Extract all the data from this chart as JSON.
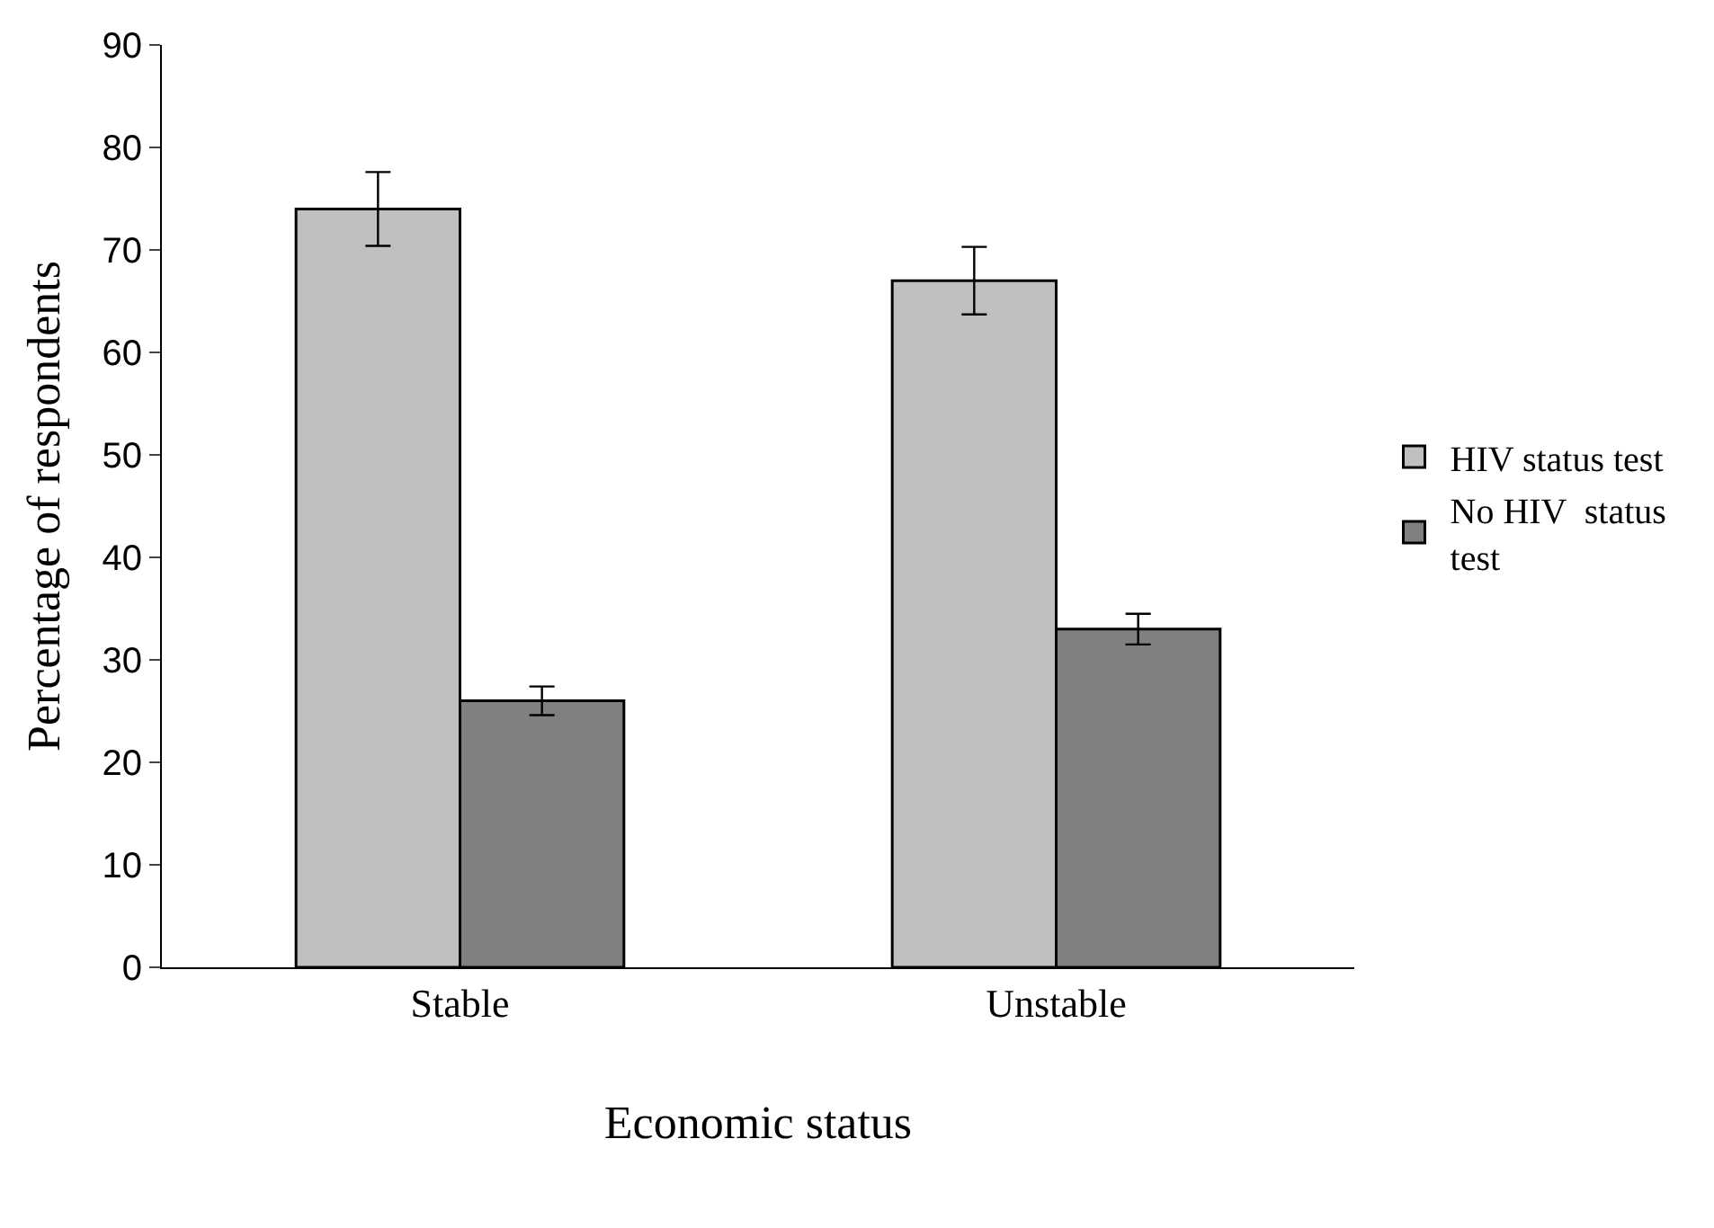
{
  "chart_data": {
    "type": "bar",
    "xlabel": "Economic status",
    "ylabel": "Percentage of respondents",
    "categories": [
      "Stable",
      "Unstable"
    ],
    "series": [
      {
        "name": "HIV status test",
        "color": "#bfbfbf",
        "values": [
          74,
          67
        ],
        "errors": [
          3.6,
          3.3
        ]
      },
      {
        "name": "No HIV  status test",
        "color": "#808080",
        "values": [
          26,
          33
        ],
        "errors": [
          1.4,
          1.5
        ]
      }
    ],
    "ylim": [
      0,
      90
    ],
    "yticks": [
      0,
      10,
      20,
      30,
      40,
      50,
      60,
      70,
      80,
      90
    ],
    "legend": "right"
  }
}
